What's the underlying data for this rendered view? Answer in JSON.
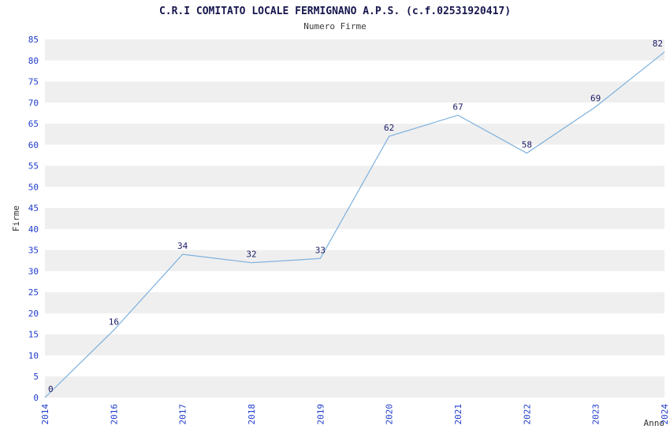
{
  "chart_data": {
    "type": "line",
    "title": "C.R.I COMITATO LOCALE FERMIGNANO A.P.S. (c.f.02531920417)",
    "subtitle": "Numero Firme",
    "xlabel": "Anno",
    "ylabel": "Firme",
    "categories": [
      "2014",
      "2016",
      "2017",
      "2018",
      "2019",
      "2020",
      "2021",
      "2022",
      "2023",
      "2024"
    ],
    "values": [
      0,
      16,
      34,
      32,
      33,
      62,
      67,
      58,
      69,
      82
    ],
    "ylim": [
      0,
      85
    ],
    "ytick_step": 5,
    "grid": "horizontal-bands",
    "legend": "none",
    "colors": {
      "line": "#7cb0dd",
      "data_label": "#1a1a66",
      "tick_label": "#1f3bcc",
      "band": "#efefef",
      "band_alt": "#ffffff",
      "axis_label": "#333333",
      "title": "#16164e",
      "subtitle": "#3a3a3a"
    }
  }
}
